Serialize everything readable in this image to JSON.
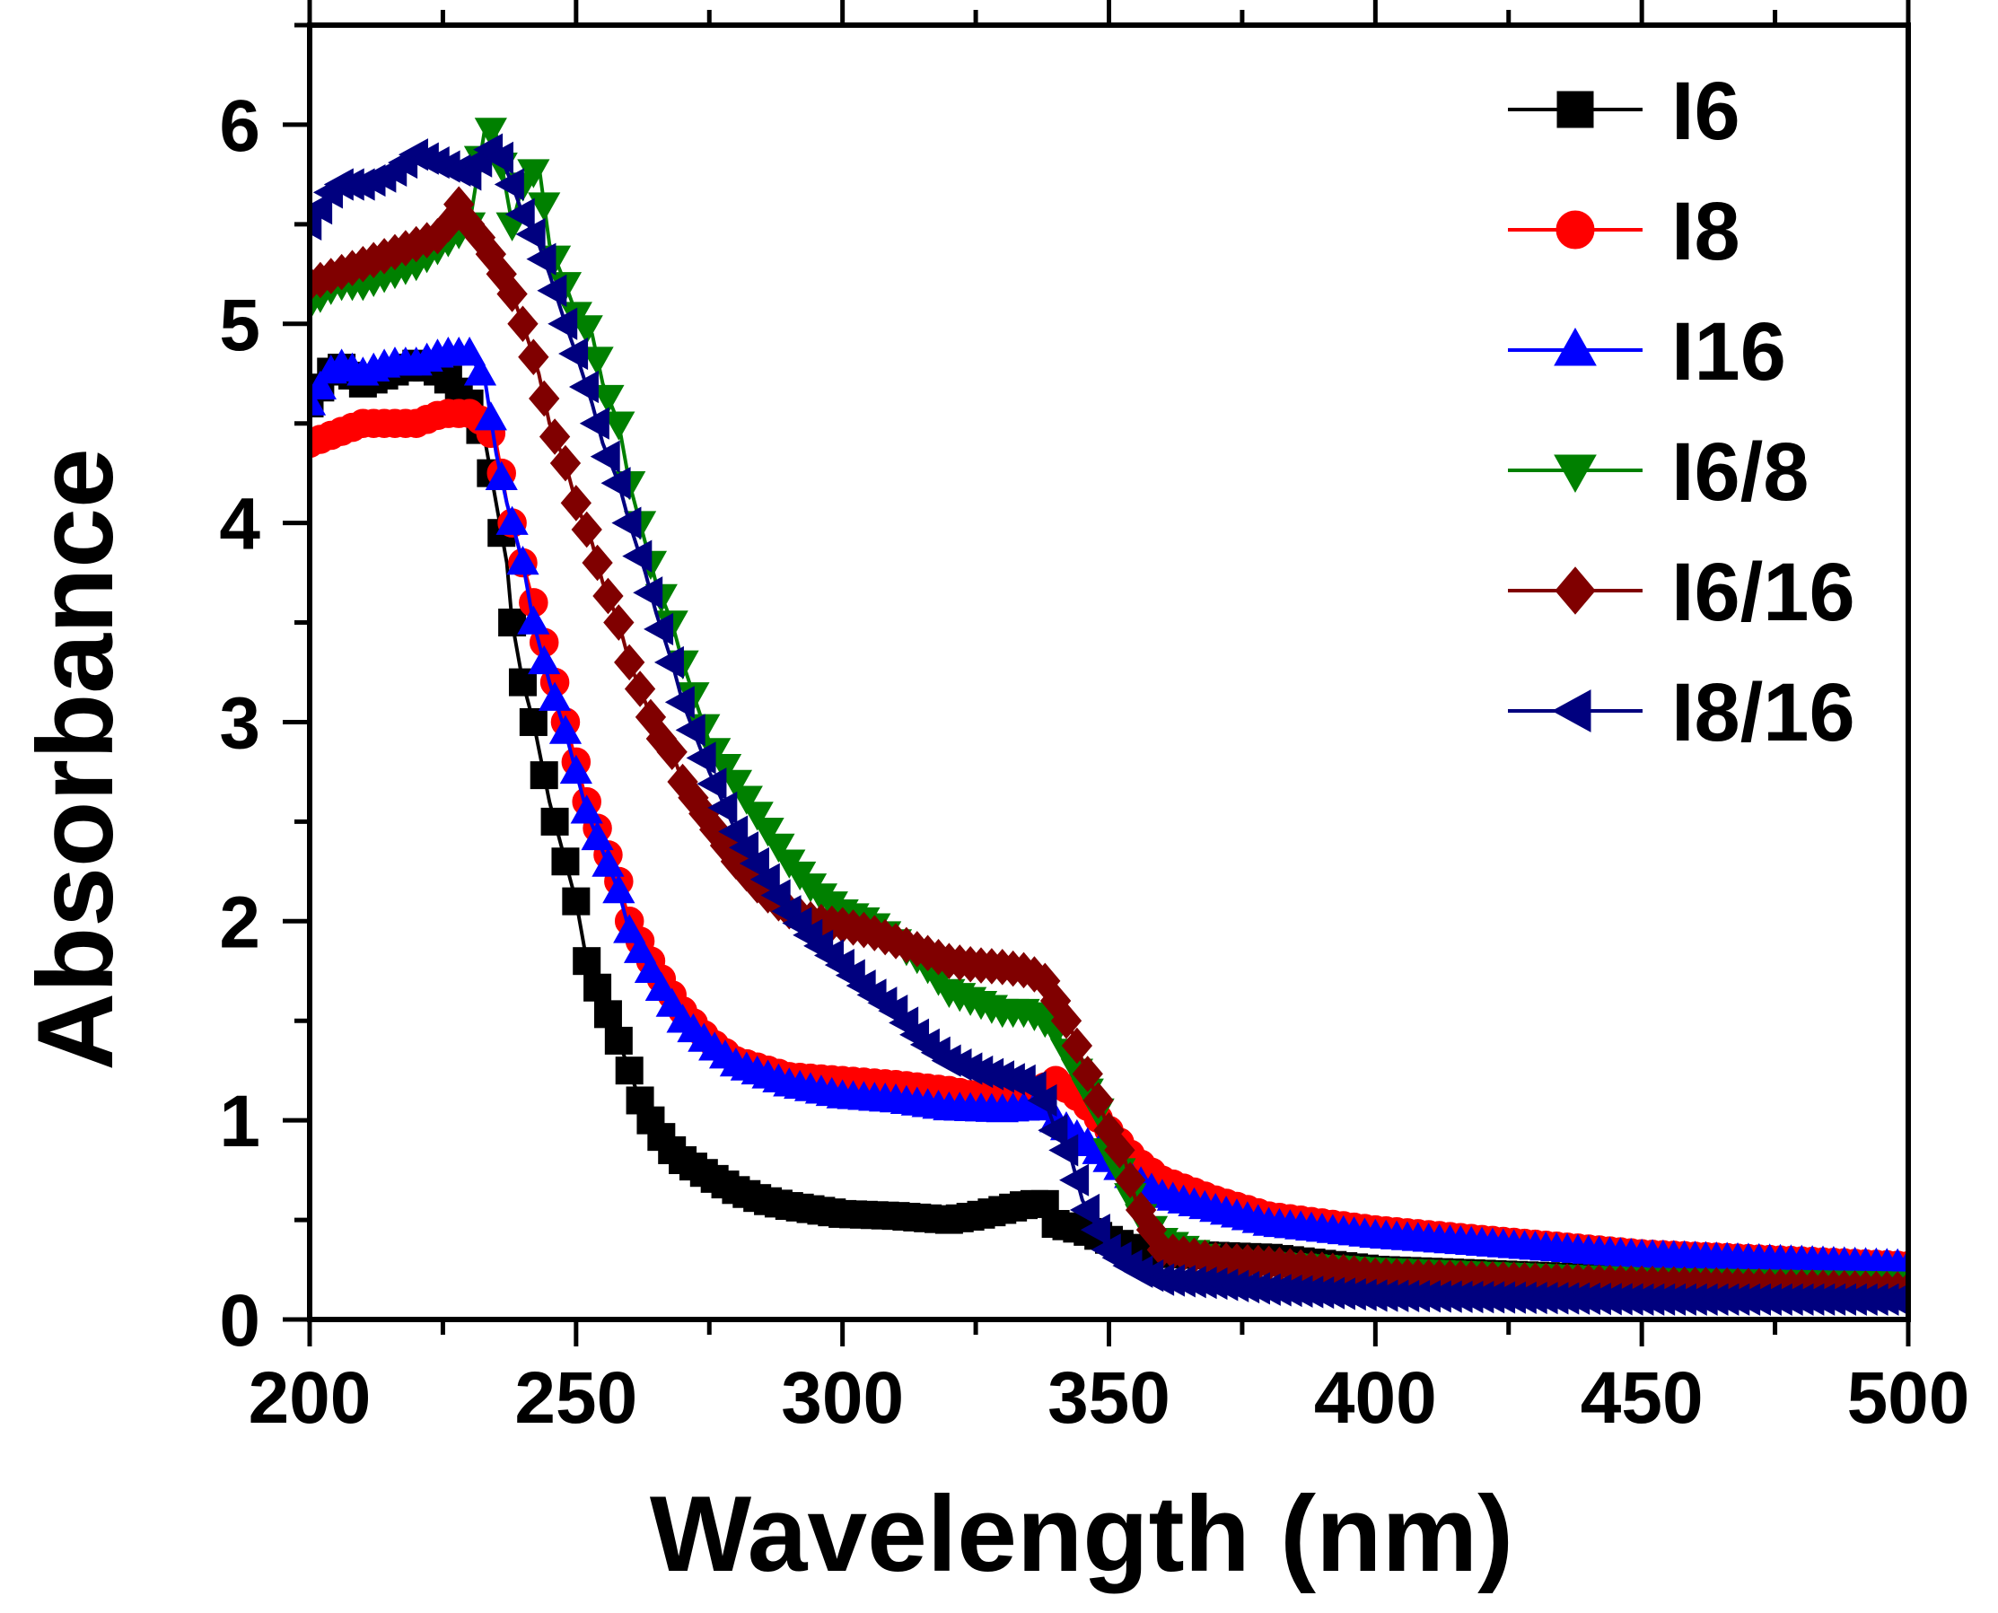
{
  "chart_data": {
    "type": "scatter",
    "title": "",
    "xlabel": "Wavelength (nm)",
    "ylabel": "Absorbance",
    "xlim": [
      200,
      500
    ],
    "ylim": [
      0,
      6.5
    ],
    "xticks": [
      200,
      250,
      300,
      350,
      400,
      450,
      500
    ],
    "xtick_labels": [
      "200",
      "250",
      "300",
      "350",
      "400",
      "450",
      "500"
    ],
    "yticks": [
      0,
      1,
      2,
      3,
      4,
      5,
      6
    ],
    "ytick_labels": [
      "0",
      "1",
      "2",
      "3",
      "4",
      "5",
      "6"
    ],
    "grid": false,
    "legend_position": "top-right",
    "series": [
      {
        "name": "I6",
        "color": "#000000",
        "marker": "square",
        "x": [
          200,
          205,
          210,
          215,
          220,
          225,
          230,
          233,
          235,
          237,
          238,
          240,
          242,
          245,
          248,
          250,
          252,
          255,
          258,
          260,
          262,
          265,
          268,
          270,
          275,
          280,
          285,
          290,
          300,
          310,
          320,
          325,
          330,
          335,
          338,
          340,
          345,
          350,
          355,
          360,
          370,
          380,
          400,
          450,
          500
        ],
        "y": [
          4.6,
          4.8,
          4.7,
          4.75,
          4.8,
          4.75,
          4.6,
          4.4,
          4.1,
          3.8,
          3.5,
          3.2,
          3.0,
          2.6,
          2.3,
          2.1,
          1.8,
          1.6,
          1.4,
          1.25,
          1.1,
          0.95,
          0.85,
          0.8,
          0.72,
          0.65,
          0.6,
          0.57,
          0.53,
          0.52,
          0.5,
          0.52,
          0.55,
          0.58,
          0.58,
          0.48,
          0.45,
          0.4,
          0.35,
          0.33,
          0.32,
          0.31,
          0.25,
          0.2,
          0.18
        ]
      },
      {
        "name": "I8",
        "color": "#ff0000",
        "marker": "circle",
        "x": [
          200,
          205,
          210,
          215,
          220,
          225,
          230,
          233,
          235,
          237,
          240,
          242,
          245,
          248,
          250,
          252,
          255,
          258,
          260,
          265,
          270,
          275,
          280,
          290,
          300,
          310,
          320,
          330,
          335,
          340,
          345,
          350,
          355,
          360,
          370,
          380,
          400,
          450,
          500
        ],
        "y": [
          4.4,
          4.45,
          4.5,
          4.5,
          4.5,
          4.55,
          4.55,
          4.5,
          4.4,
          4.1,
          3.8,
          3.6,
          3.3,
          3.0,
          2.8,
          2.6,
          2.4,
          2.2,
          2.0,
          1.75,
          1.55,
          1.4,
          1.3,
          1.22,
          1.2,
          1.18,
          1.15,
          1.1,
          1.12,
          1.2,
          1.1,
          0.95,
          0.8,
          0.7,
          0.6,
          0.52,
          0.45,
          0.33,
          0.27
        ]
      },
      {
        "name": "I16",
        "color": "#0000ff",
        "marker": "triangle-up",
        "x": [
          200,
          205,
          210,
          215,
          220,
          225,
          230,
          233,
          235,
          237,
          240,
          242,
          245,
          248,
          250,
          252,
          255,
          258,
          260,
          265,
          270,
          275,
          280,
          290,
          300,
          310,
          320,
          330,
          335,
          338,
          340,
          345,
          350,
          355,
          360,
          370,
          380,
          400,
          450,
          500
        ],
        "y": [
          4.6,
          4.8,
          4.75,
          4.8,
          4.8,
          4.85,
          4.85,
          4.7,
          4.35,
          4.1,
          3.8,
          3.5,
          3.2,
          2.95,
          2.75,
          2.55,
          2.35,
          2.15,
          1.95,
          1.7,
          1.5,
          1.38,
          1.28,
          1.18,
          1.12,
          1.1,
          1.06,
          1.05,
          1.06,
          1.06,
          1.0,
          0.9,
          0.8,
          0.7,
          0.62,
          0.55,
          0.48,
          0.42,
          0.32,
          0.27
        ]
      },
      {
        "name": "I6/8",
        "color": "#008000",
        "marker": "triangle-down",
        "x": [
          200,
          205,
          210,
          215,
          220,
          225,
          230,
          233,
          235,
          238,
          240,
          243,
          245,
          248,
          250,
          253,
          255,
          258,
          260,
          263,
          265,
          268,
          270,
          275,
          280,
          285,
          290,
          295,
          300,
          305,
          310,
          315,
          320,
          325,
          330,
          335,
          338,
          340,
          343,
          345,
          348,
          350,
          353,
          355,
          360,
          370,
          380,
          400,
          450,
          500
        ],
        "y": [
          5.1,
          5.2,
          5.2,
          5.25,
          5.3,
          5.4,
          5.5,
          6.0,
          5.95,
          5.5,
          5.7,
          5.8,
          5.4,
          5.2,
          5.05,
          4.95,
          4.7,
          4.5,
          4.2,
          3.9,
          3.7,
          3.5,
          3.3,
          2.9,
          2.7,
          2.5,
          2.3,
          2.15,
          2.05,
          2.0,
          1.9,
          1.8,
          1.65,
          1.6,
          1.55,
          1.55,
          1.5,
          1.45,
          1.3,
          1.2,
          1.05,
          0.85,
          0.7,
          0.55,
          0.4,
          0.3,
          0.28,
          0.25,
          0.2,
          0.18
        ]
      },
      {
        "name": "I6/16",
        "color": "#800000",
        "marker": "diamond",
        "x": [
          200,
          205,
          210,
          215,
          220,
          225,
          228,
          230,
          233,
          235,
          238,
          240,
          243,
          245,
          248,
          250,
          253,
          255,
          258,
          260,
          263,
          265,
          268,
          270,
          275,
          280,
          285,
          290,
          295,
          300,
          305,
          310,
          315,
          320,
          325,
          330,
          335,
          338,
          340,
          343,
          345,
          348,
          350,
          353,
          355,
          358,
          360,
          370,
          380,
          400,
          450,
          500
        ],
        "y": [
          5.2,
          5.25,
          5.3,
          5.35,
          5.4,
          5.45,
          5.6,
          5.5,
          5.4,
          5.3,
          5.15,
          5.0,
          4.75,
          4.5,
          4.3,
          4.1,
          3.9,
          3.7,
          3.5,
          3.3,
          3.1,
          2.95,
          2.85,
          2.7,
          2.5,
          2.3,
          2.15,
          2.05,
          2.0,
          1.98,
          1.95,
          1.9,
          1.85,
          1.8,
          1.78,
          1.77,
          1.75,
          1.7,
          1.6,
          1.45,
          1.3,
          1.1,
          0.95,
          0.8,
          0.6,
          0.45,
          0.35,
          0.3,
          0.28,
          0.22,
          0.18,
          0.15
        ]
      },
      {
        "name": "I8/16",
        "color": "#00007f",
        "marker": "triangle-left",
        "x": [
          200,
          205,
          210,
          215,
          220,
          225,
          230,
          233,
          235,
          238,
          240,
          243,
          245,
          248,
          250,
          253,
          255,
          258,
          260,
          263,
          265,
          268,
          270,
          275,
          280,
          285,
          290,
          295,
          300,
          305,
          310,
          315,
          320,
          325,
          330,
          333,
          335,
          338,
          340,
          343,
          345,
          348,
          350,
          355,
          360,
          370,
          380,
          400,
          450,
          500
        ],
        "y": [
          5.5,
          5.7,
          5.7,
          5.75,
          5.85,
          5.8,
          5.75,
          5.85,
          5.9,
          5.7,
          5.55,
          5.4,
          5.25,
          5.0,
          4.85,
          4.6,
          4.4,
          4.2,
          4.0,
          3.75,
          3.55,
          3.3,
          3.1,
          2.75,
          2.45,
          2.25,
          2.05,
          1.9,
          1.78,
          1.65,
          1.55,
          1.4,
          1.3,
          1.25,
          1.22,
          1.2,
          1.2,
          1.1,
          0.95,
          0.8,
          0.6,
          0.45,
          0.35,
          0.25,
          0.2,
          0.18,
          0.15,
          0.12,
          0.1,
          0.1
        ]
      }
    ]
  }
}
